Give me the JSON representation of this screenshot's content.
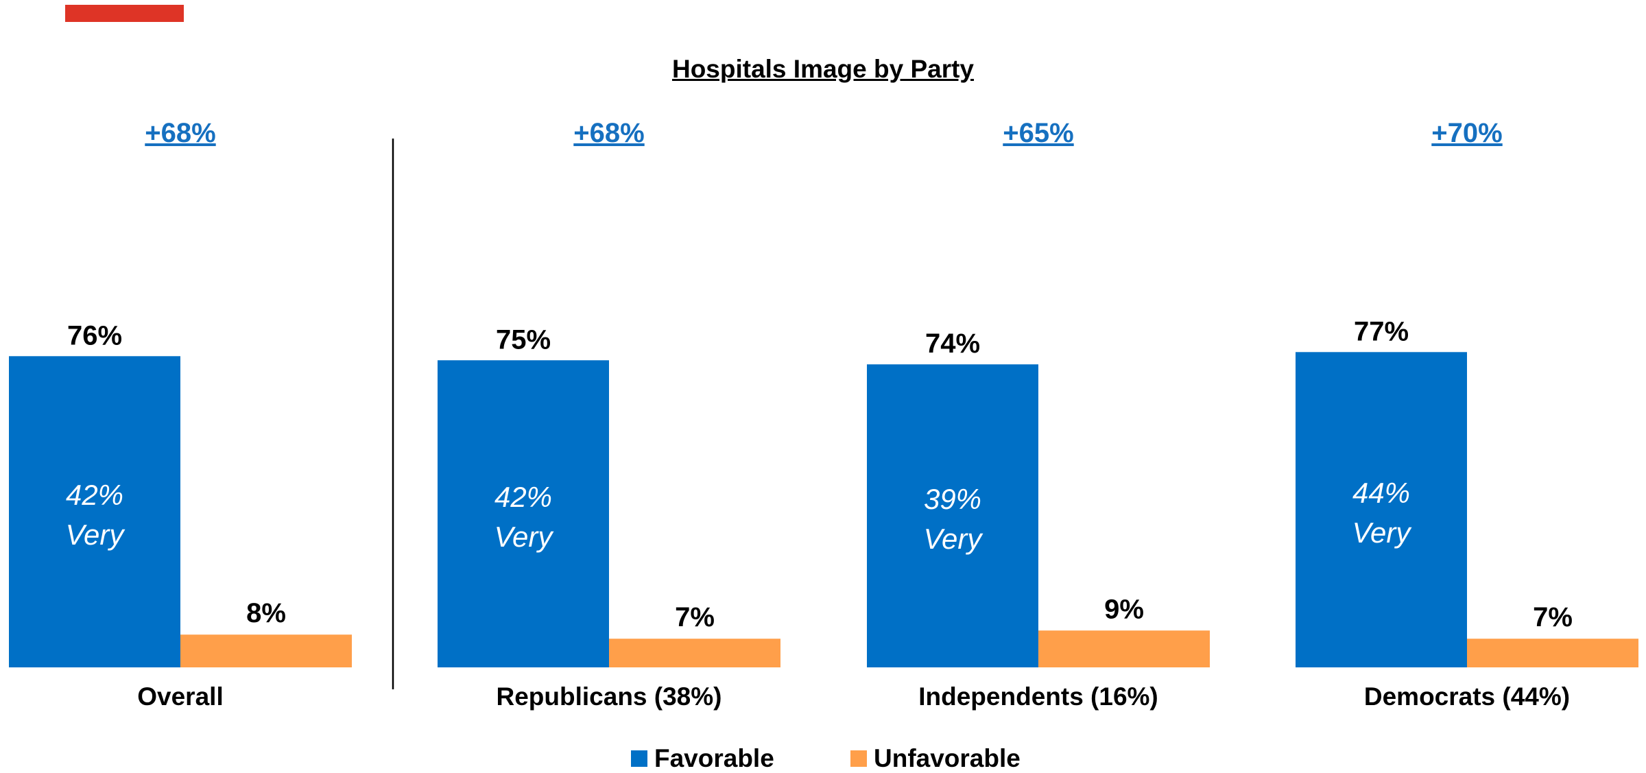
{
  "title": "Hospitals Image by Party",
  "colors": {
    "favorable": "#0070C6",
    "unfavorable": "#FF9F4A",
    "net": "#1670C0",
    "accent": "#DE3426",
    "very_label": "#FFFFFF"
  },
  "chart_data": {
    "type": "bar",
    "title": "Hospitals Image by Party",
    "categories": [
      "Overall",
      "Republicans (38%)",
      "Independents (16%)",
      "Democrats (44%)"
    ],
    "series": [
      {
        "name": "Favorable",
        "values": [
          76,
          75,
          74,
          77
        ]
      },
      {
        "name": "Unfavorable",
        "values": [
          8,
          7,
          9,
          7
        ]
      }
    ],
    "value_labels": {
      "favorable": [
        "76%",
        "75%",
        "74%",
        "77%"
      ],
      "unfavorable": [
        "8%",
        "7%",
        "9%",
        "7%"
      ]
    },
    "net_labels": [
      "+68%",
      "+68%",
      "+65%",
      "+70%"
    ],
    "very_values": [
      "42%",
      "42%",
      "39%",
      "44%"
    ],
    "very_word": "Very",
    "ylim": [
      0,
      100
    ],
    "grid": false,
    "legend_position": "bottom-center"
  },
  "legend": {
    "favorable": "Favorable",
    "unfavorable": "Unfavorable"
  }
}
